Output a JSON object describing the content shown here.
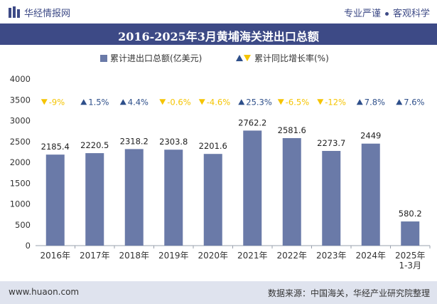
{
  "header": {
    "logo_text": "华经情报网",
    "slogan_left": "专业严谨",
    "slogan_right": "客观科学"
  },
  "footer": {
    "website": "www.huaon.com",
    "source": "数据来源：中国海关，华经产业研究院整理"
  },
  "colors": {
    "bar": "#6a7aa8",
    "up": "#2e4f8a",
    "down": "#f5c400",
    "title_bg": "#3d4a86",
    "footer_bg": "#dfe3ee"
  },
  "chart_data": {
    "type": "bar",
    "title": "2016-2025年3月黄埔海关进出口总额",
    "legend": {
      "bar_label": "累计进出口总额(亿美元)",
      "growth_label": "累计同比增长率(%)",
      "placement": "top-center"
    },
    "categories": [
      "2016年",
      "2017年",
      "2018年",
      "2019年",
      "2020年",
      "2021年",
      "2022年",
      "2023年",
      "2024年",
      "2025年\n1-3月"
    ],
    "values": [
      2185.4,
      2220.5,
      2318.2,
      2303.8,
      2201.6,
      2762.2,
      2581.6,
      2273.7,
      2449,
      580.2
    ],
    "value_labels": [
      "2185.4",
      "2220.5",
      "2318.2",
      "2303.8",
      "2201.6",
      "2762.2",
      "2581.6",
      "2273.7",
      "2449",
      "580.2"
    ],
    "growth": [
      "-9%",
      "1.5%",
      "4.4%",
      "-0.6%",
      "-4.6%",
      "25.3%",
      "-6.5%",
      "-12%",
      "7.8%",
      "7.6%"
    ],
    "growth_direction": [
      "down",
      "up",
      "up",
      "down",
      "down",
      "up",
      "down",
      "down",
      "up",
      "up"
    ],
    "ylim": [
      0,
      4000
    ],
    "yticks": [
      "0",
      "500",
      "1000",
      "1500",
      "2000",
      "2500",
      "3000",
      "3500",
      "4000"
    ],
    "grid": false
  }
}
